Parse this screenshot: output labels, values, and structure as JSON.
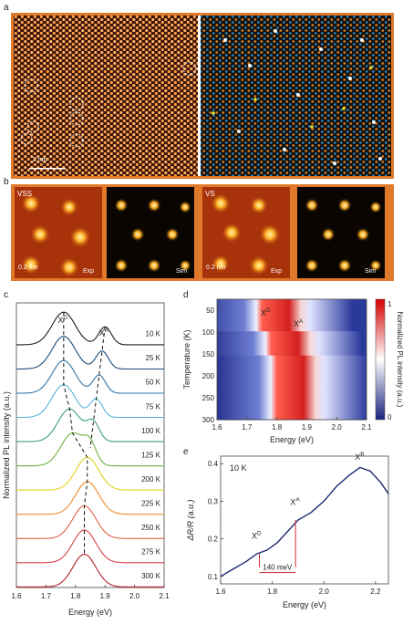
{
  "panel_labels": {
    "a": "a",
    "b": "b",
    "c": "c",
    "d": "d",
    "e": "e"
  },
  "panel_a": {
    "scalebar": "2 nm",
    "frame_color": "#e07a2a"
  },
  "panel_b": {
    "tiles": [
      {
        "corner": "VSS",
        "scalebar": "0.2 nm",
        "tag": "Exp"
      },
      {
        "corner": "",
        "scalebar": "",
        "tag": "Sim"
      },
      {
        "corner": "VS",
        "scalebar": "0.2 nm",
        "tag": "Exp"
      },
      {
        "corner": "",
        "scalebar": "",
        "tag": "Sim"
      }
    ]
  },
  "chart_data": [
    {
      "panel": "c",
      "type": "line",
      "xlabel": "Energy (eV)",
      "ylabel": "Normalized PL intensity (a.u.)",
      "xlim": [
        1.6,
        2.1
      ],
      "xticks": [
        "1.6",
        "1.7",
        "1.8",
        "1.9",
        "2.0",
        "2.1"
      ],
      "annotations": {
        "xd": "X",
        "xd_sup": "D",
        "xa": "X",
        "xa_sup": "A"
      },
      "series": [
        {
          "name": "10 K",
          "color": "#1c1c2c",
          "peak": 1.76,
          "shoulder": 1.9
        },
        {
          "name": "25 K",
          "color": "#1f4b7a",
          "peak": 1.76,
          "shoulder": 1.89
        },
        {
          "name": "50 K",
          "color": "#2e74a8",
          "peak": 1.76,
          "shoulder": 1.88
        },
        {
          "name": "75 K",
          "color": "#57b3d6",
          "peak": 1.76,
          "shoulder": 1.87
        },
        {
          "name": "100 K",
          "color": "#3a9a8a",
          "peak": 1.78,
          "shoulder": 1.86
        },
        {
          "name": "125 K",
          "color": "#6db33f",
          "peak": 1.79,
          "shoulder": 1.85
        },
        {
          "name": "200 K",
          "color": "#e3d21a",
          "peak": 1.84,
          "shoulder": 0
        },
        {
          "name": "225 K",
          "color": "#f08a2c",
          "peak": 1.84,
          "shoulder": 0
        },
        {
          "name": "250 K",
          "color": "#e0604a",
          "peak": 1.83,
          "shoulder": 0
        },
        {
          "name": "275 K",
          "color": "#d8404a",
          "peak": 1.83,
          "shoulder": 0
        },
        {
          "name": "300 K",
          "color": "#b21e2a",
          "peak": 1.83,
          "shoulder": 0
        }
      ]
    },
    {
      "panel": "d",
      "type": "heatmap",
      "xlabel": "Energy (eV)",
      "ylabel": "Temperature (K)",
      "xlim": [
        1.6,
        2.1
      ],
      "ylim": [
        25,
        300
      ],
      "xticks": [
        "1.6",
        "1.7",
        "1.8",
        "1.9",
        "2.0",
        "2.1"
      ],
      "yticks": [
        "50",
        "100",
        "150",
        "200",
        "250",
        "300"
      ],
      "colorbar": {
        "label": "Normalized PL intensity (a.u.)",
        "min": "0",
        "max": "1"
      },
      "annotations": {
        "xd": "X",
        "xd_sup": "D",
        "xa": "X",
        "xa_sup": "A"
      }
    },
    {
      "panel": "e",
      "type": "line",
      "xlabel": "Energy (eV)",
      "ylabel": "ΔR/R (a.u.)",
      "xlim": [
        1.6,
        2.25
      ],
      "ylim": [
        0.08,
        0.42
      ],
      "xticks": [
        "1.6",
        "1.8",
        "2.0",
        "2.2"
      ],
      "yticks": [
        "0.1",
        "0.2",
        "0.3",
        "0.4"
      ],
      "temperature_label": "10 K",
      "splitting_label": "140 meV",
      "annotations": {
        "xd": "X",
        "xd_sup": "D",
        "xa": "X",
        "xa_sup": "A",
        "xb": "X",
        "xb_sup": "B"
      },
      "x": [
        1.6,
        1.65,
        1.7,
        1.74,
        1.78,
        1.82,
        1.86,
        1.9,
        1.95,
        2.0,
        2.05,
        2.1,
        2.14,
        2.18,
        2.22,
        2.25
      ],
      "y": [
        0.1,
        0.12,
        0.14,
        0.16,
        0.17,
        0.19,
        0.22,
        0.25,
        0.27,
        0.3,
        0.34,
        0.37,
        0.39,
        0.38,
        0.35,
        0.32
      ]
    }
  ]
}
